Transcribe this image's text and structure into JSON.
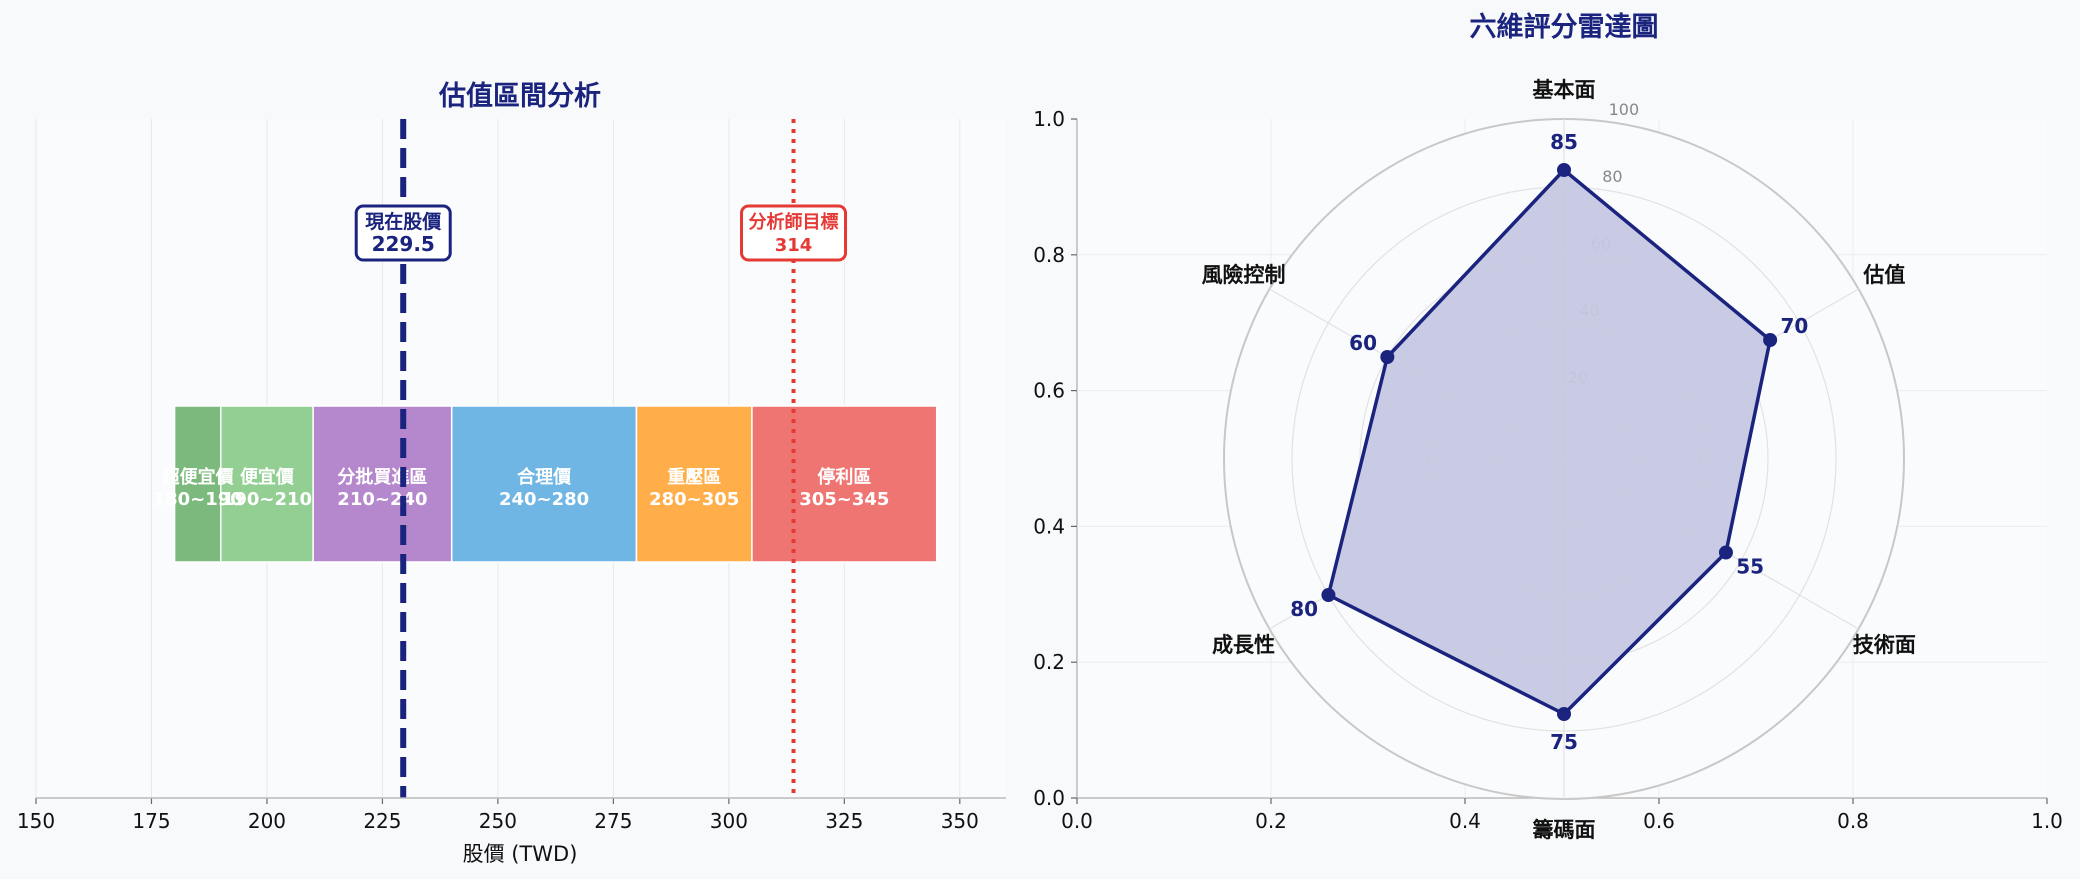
{
  "colors": {
    "page_bg": "#f8f9fb",
    "title": "#1a237e",
    "current_price": "#1a237e",
    "target_price": "#e53935",
    "radar_line": "#1a237e",
    "radar_fill": "#c5c8e2"
  },
  "chart_data": [
    {
      "type": "bar",
      "orientation": "horizontal",
      "title": "估值區間分析",
      "xlabel": "股價 (TWD)",
      "ylabel": "",
      "xlim": [
        150,
        360
      ],
      "xticks": [
        150,
        175,
        200,
        225,
        250,
        275,
        300,
        325,
        350
      ],
      "grid": "vertical",
      "zones": [
        {
          "label": "超便宜價",
          "range_label": "180~190",
          "start": 180,
          "end": 190,
          "color": "#7cb97c"
        },
        {
          "label": "便宜價",
          "range_label": "190~210",
          "start": 190,
          "end": 210,
          "color": "#93cf93"
        },
        {
          "label": "分批買進區",
          "range_label": "210~240",
          "start": 210,
          "end": 240,
          "color": "#b587cc"
        },
        {
          "label": "合理價",
          "range_label": "240~280",
          "start": 240,
          "end": 280,
          "color": "#6fb6e4"
        },
        {
          "label": "重壓區",
          "range_label": "280~305",
          "start": 280,
          "end": 305,
          "color": "#ffae4a"
        },
        {
          "label": "停利區",
          "range_label": "305~345",
          "start": 305,
          "end": 345,
          "color": "#ee7572"
        }
      ],
      "reference_lines": [
        {
          "name": "現在股價",
          "value": 229.5,
          "value_label": "229.5",
          "style": "dashed",
          "color": "#1a237e"
        },
        {
          "name": "分析師目標",
          "value": 314,
          "value_label": "314",
          "style": "dotted",
          "color": "#e53935"
        }
      ]
    },
    {
      "type": "radar",
      "title": "六維評分雷達圖",
      "axes": [
        "基本面",
        "估值",
        "技術面",
        "籌碼面",
        "成長性",
        "風險控制"
      ],
      "values": [
        85,
        70,
        55,
        75,
        80,
        60
      ],
      "rlim": [
        0,
        100
      ],
      "rticks": [
        20,
        40,
        60,
        80,
        100
      ],
      "frame_xlim": [
        0,
        1
      ],
      "frame_ylim": [
        0,
        1
      ],
      "frame_xticks": [
        "0.0",
        "0.2",
        "0.4",
        "0.6",
        "0.8",
        "1.0"
      ],
      "frame_yticks": [
        "0.0",
        "0.2",
        "0.4",
        "0.6",
        "0.8",
        "1.0"
      ]
    }
  ]
}
